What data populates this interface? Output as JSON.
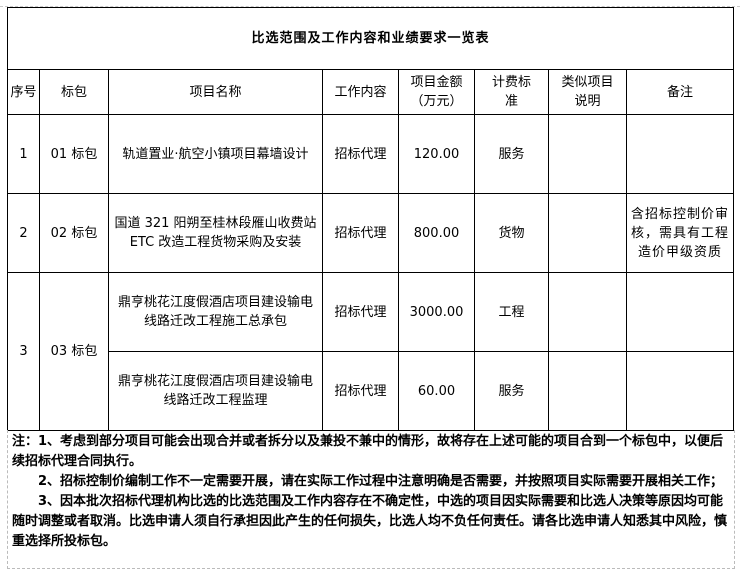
{
  "title": "比选范围及工作内容和业绩要求一览表",
  "headers": [
    "序号",
    "标包",
    "项目名称",
    "工作内容",
    "项目金额（万元）",
    "计费标准",
    "类似项目说明",
    "备注"
  ],
  "rows": [
    {
      "no": "1",
      "package": "01 标包",
      "name": "轨道置业·航空小镇项目幕墙设计",
      "work": "招标代理",
      "amount": "120.00",
      "standard": "服务",
      "similar": "",
      "remark": ""
    },
    {
      "no": "2",
      "package": "02 标包",
      "name": "国道 321 阳朔至桂林段雁山收费站 ETC 改造工程货物采购及安装",
      "work": "招标代理",
      "amount": "800.00",
      "standard": "货物",
      "similar": "",
      "remark": "含招标控制价审核，需具有工程造价甲级资质"
    },
    {
      "no": "3",
      "package": "03 标包",
      "name": "鼎亨桃花江度假酒店项目建设输电线路迁改工程施工总承包",
      "work": "招标代理",
      "amount": "3000.00",
      "standard": "工程",
      "similar": "",
      "remark": ""
    },
    {
      "no": "",
      "package": "",
      "name": "鼎亨桃花江度假酒店项目建设输电线路迁改工程监理",
      "work": "招标代理",
      "amount": "60.00",
      "standard": "服务",
      "similar": "",
      "remark": ""
    }
  ],
  "notes": [
    "注：1、考虑到部分项目可能会出现合并或者拆分以及兼投不兼中的情形，故将存在上述可能的项目合到一个标包中，以便后续招标代理合同执行。",
    "2、招标控制价编制工作不一定需要开展，请在实际工作过程中注意明确是否需要，并按照项目实际需要开展相关工作；",
    "3、因本批次招标代理机构比选的比选范围及工作内容存在不确定性，中选的项目因实际需要和比选人决策等原因均可能随时调整或者取消。比选申请人须自行承担因此产生的任何损失，比选人均不负任何责任。请各比选申请人知悉其中风险，慎重选择所投标包。"
  ]
}
